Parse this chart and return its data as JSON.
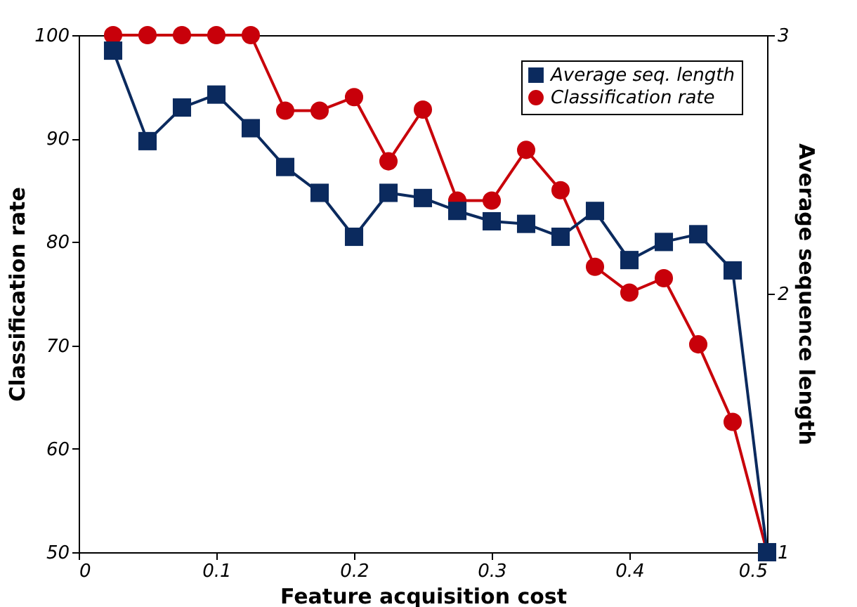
{
  "chart_data": {
    "type": "line",
    "xlabel": "Feature acquisition cost",
    "ylabel": "Classification rate",
    "y2label": "Average sequence length",
    "x": [
      0.025,
      0.05,
      0.075,
      0.1,
      0.125,
      0.15,
      0.175,
      0.2,
      0.225,
      0.25,
      0.275,
      0.3,
      0.325,
      0.35,
      0.375,
      0.4,
      0.425,
      0.45,
      0.475,
      0.5
    ],
    "series": [
      {
        "name": "Average seq. length",
        "color": "#0b2a5e",
        "axis": "y2",
        "marker": "square",
        "values": [
          2.94,
          2.59,
          2.72,
          2.77,
          2.64,
          2.49,
          2.39,
          2.22,
          2.39,
          2.37,
          2.32,
          2.28,
          2.27,
          2.22,
          2.32,
          2.13,
          2.2,
          2.23,
          2.09,
          1
        ]
      },
      {
        "name": "Classification rate",
        "color": "#c8000a",
        "marker": "circle",
        "values": [
          100,
          100,
          100,
          100,
          100,
          92.7,
          92.7,
          94.0,
          87.8,
          92.8,
          84.0,
          84.0,
          88.9,
          85.0,
          77.6,
          75.1,
          76.5,
          70.1,
          62.6,
          50
        ]
      }
    ],
    "xlim": [
      0,
      0.5
    ],
    "xticks": [
      0,
      0.1,
      0.2,
      0.3,
      0.4,
      0.5
    ],
    "ylim": [
      50,
      100
    ],
    "yticks": [
      50,
      60,
      70,
      80,
      90,
      100
    ],
    "y2lim": [
      1,
      3
    ],
    "y2ticks": [
      1,
      2,
      3
    ],
    "grid": false,
    "legend": "top right",
    "line_style": "solid"
  }
}
